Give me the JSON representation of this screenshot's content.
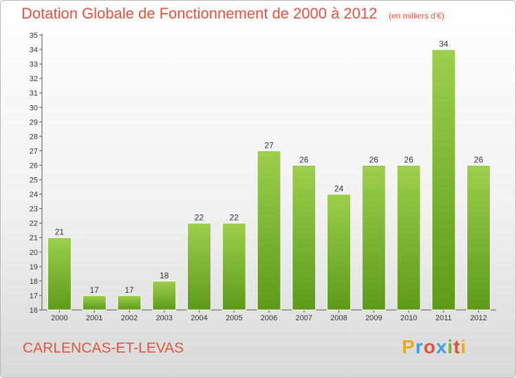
{
  "title": "Dotation Globale de Fonctionnement de 2000 à 2012",
  "unit_note": "(en milliers d'€)",
  "commune": "CARLENCAS-ET-LEVAS",
  "logo": "Proxiti",
  "colors": {
    "bar_top": "#9ccf4d",
    "bar_bottom": "#5e9a1a",
    "title": "#e0533f"
  },
  "chart_data": {
    "type": "bar",
    "title": "Dotation Globale de Fonctionnement de 2000 à 2012",
    "ylabel": "(en milliers d'€)",
    "xlabel": "",
    "categories": [
      "2000",
      "2001",
      "2002",
      "2003",
      "2004",
      "2005",
      "2006",
      "2007",
      "2008",
      "2009",
      "2010",
      "2011",
      "2012"
    ],
    "values": [
      21,
      17,
      17,
      18,
      22,
      22,
      27,
      26,
      24,
      26,
      26,
      34,
      26
    ],
    "ylim": [
      16,
      35
    ],
    "yticks": [
      16,
      17,
      18,
      19,
      20,
      21,
      22,
      23,
      24,
      25,
      26,
      27,
      28,
      29,
      30,
      31,
      32,
      33,
      34,
      35
    ],
    "grid": false,
    "data_labels": true
  }
}
